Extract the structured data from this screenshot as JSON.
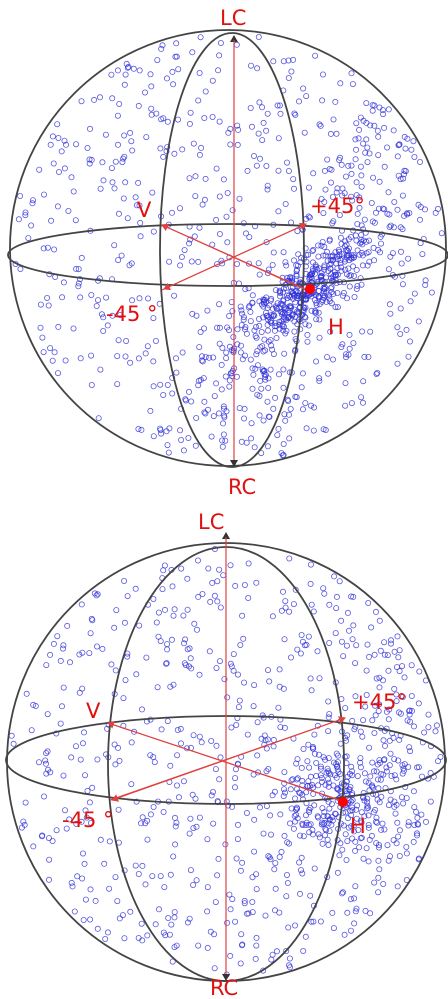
{
  "spheres": [
    {
      "labels": {
        "lc": "LC",
        "rc": "RC",
        "v": "V",
        "h": "H",
        "p45": "+45°",
        "m45": "-45 °"
      },
      "colors": {
        "axis": "#e04040",
        "points": "#3030d8",
        "sphere": "#444444",
        "label": "#e01010",
        "marker": "#ff0000"
      }
    },
    {
      "labels": {
        "lc": "LC",
        "rc": "RC",
        "v": "V",
        "h": "H",
        "p45": "+45°",
        "m45": "-45 °"
      },
      "colors": {
        "axis": "#e04040",
        "points": "#3030d8",
        "sphere": "#444444",
        "label": "#e01010",
        "marker": "#ff0000"
      }
    }
  ]
}
